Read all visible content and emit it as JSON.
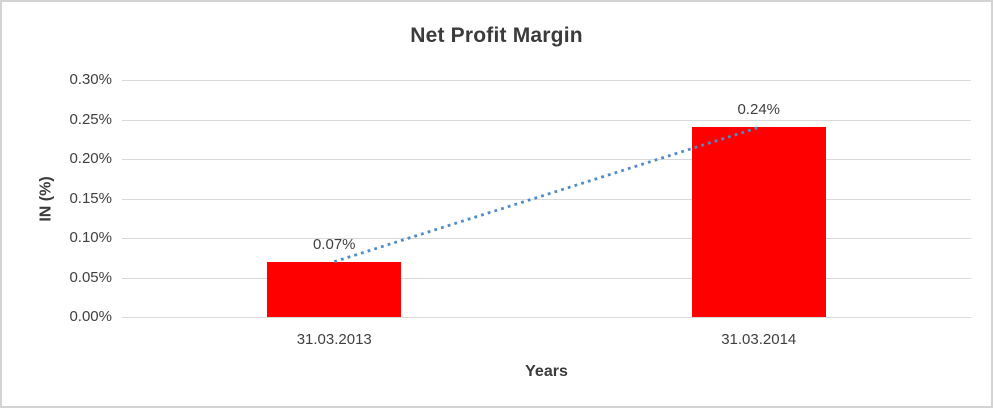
{
  "window": {
    "background": "#ffffff",
    "border_color": "#d3d3d3"
  },
  "chart_data": {
    "type": "bar",
    "title": "Net Profit Margin",
    "categories": [
      "31.03.2013",
      "31.03.2014"
    ],
    "values": [
      0.07,
      0.24
    ],
    "data_labels": [
      "0.07%",
      "0.24%"
    ],
    "xlabel": "Years",
    "ylabel": "IN (%)",
    "ylim": [
      0,
      0.3
    ],
    "ytick_step": 0.05,
    "ytick_labels": [
      "0.00%",
      "0.05%",
      "0.10%",
      "0.15%",
      "0.20%",
      "0.25%",
      "0.30%"
    ],
    "grid": true,
    "legend": "none",
    "bar_color": "#ff0000",
    "gridline_color": "#d9d9d9",
    "text_color": "#404040",
    "title_color": "#3b3b3b",
    "trendline": {
      "type": "linear",
      "style": "dotted",
      "color": "#4e8bc8",
      "connects": "bar-tops"
    }
  }
}
